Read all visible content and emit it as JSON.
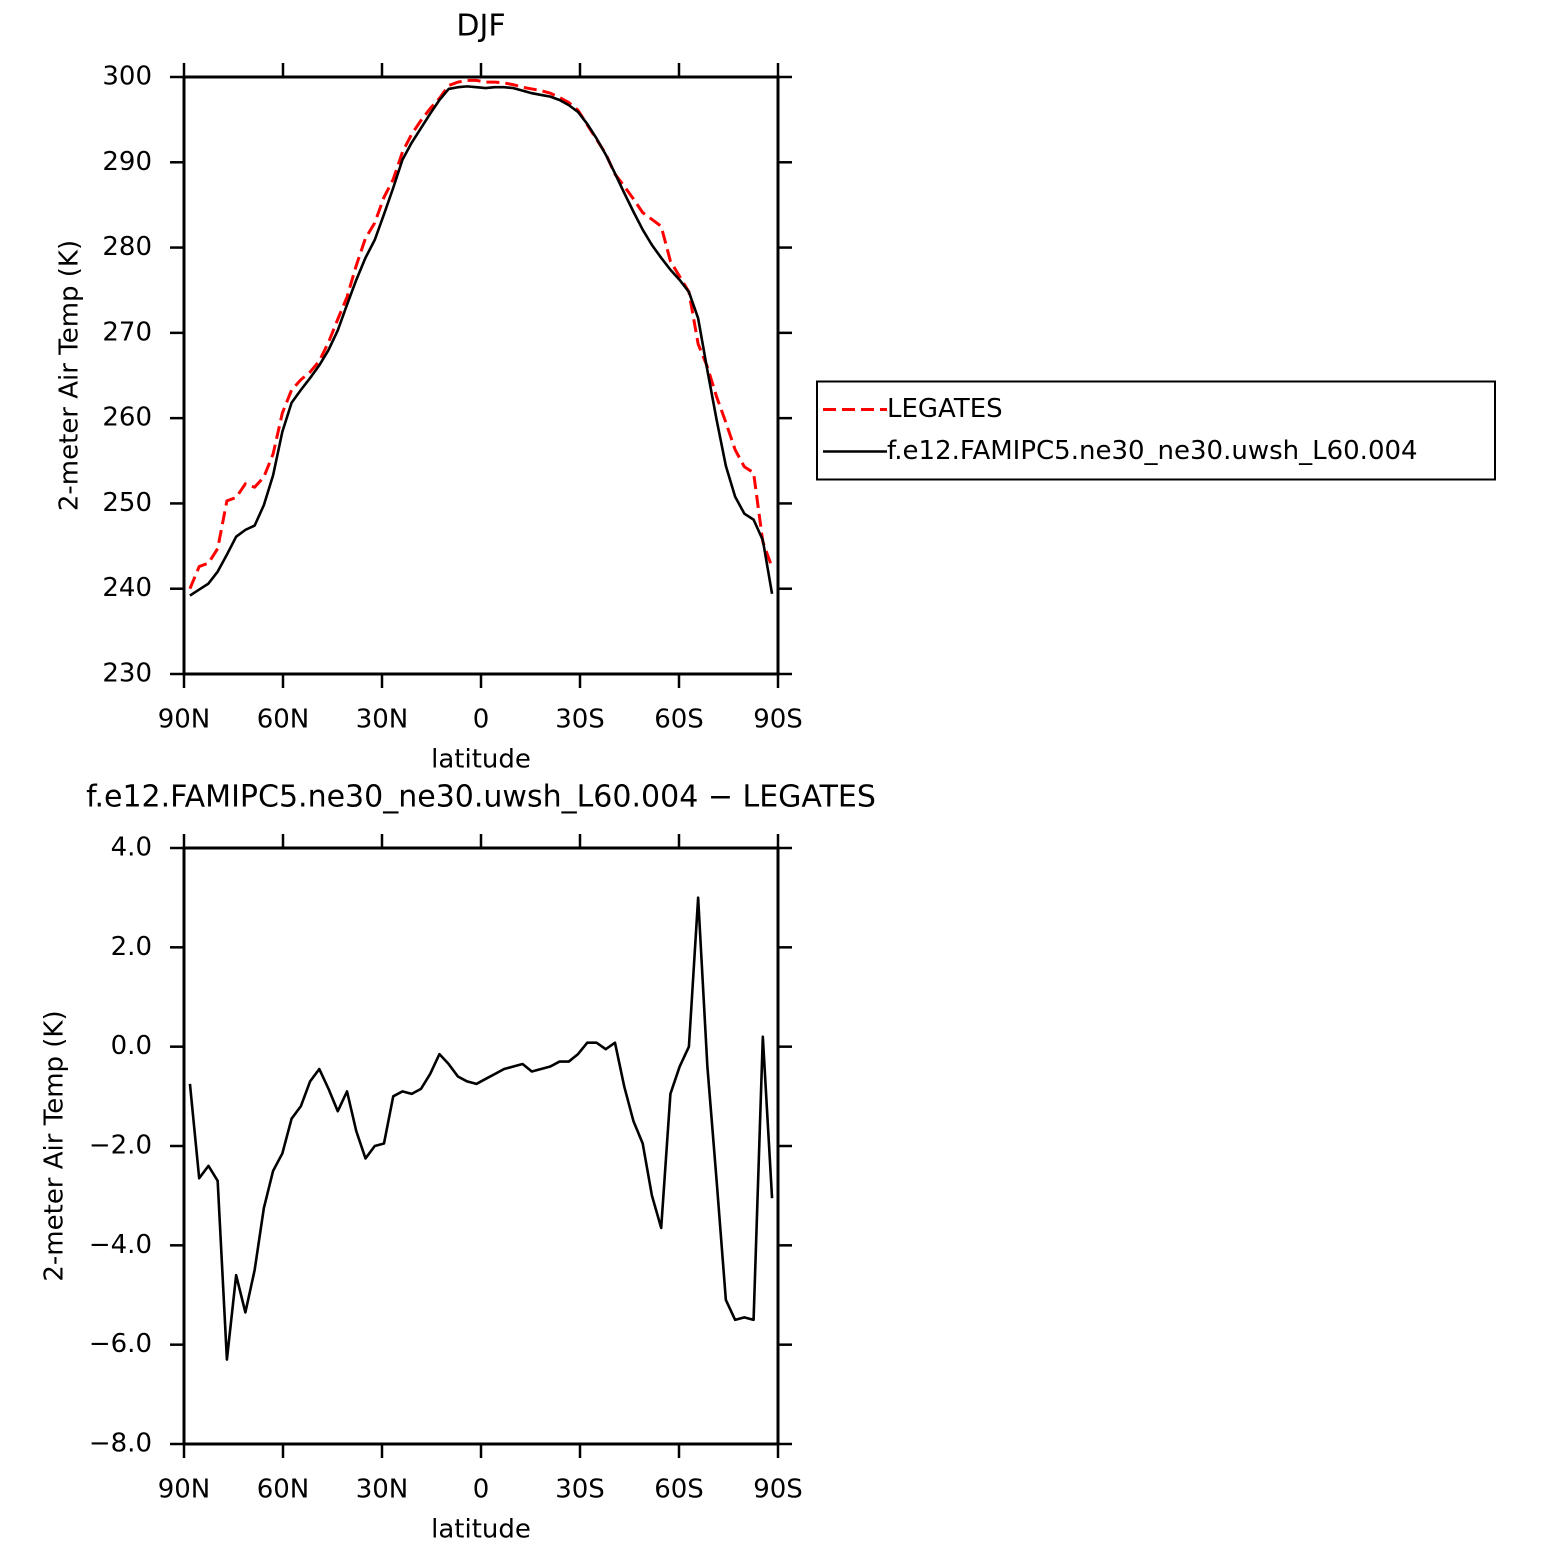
{
  "chart_data": [
    {
      "type": "line",
      "title": "DJF",
      "xlabel": "latitude",
      "ylabel": "2-meter Air Temp (K)",
      "x": [
        88.2,
        85.4,
        82.6,
        79.8,
        77.0,
        74.2,
        71.4,
        68.6,
        65.8,
        63.0,
        60.2,
        57.4,
        54.6,
        51.8,
        49.0,
        46.2,
        43.4,
        40.6,
        37.8,
        35.0,
        32.2,
        29.4,
        26.6,
        23.8,
        21.0,
        18.2,
        15.4,
        12.6,
        9.8,
        7.0,
        4.2,
        1.4,
        -1.4,
        -4.2,
        -7.0,
        -9.8,
        -12.6,
        -15.4,
        -18.2,
        -21.0,
        -23.8,
        -26.6,
        -29.4,
        -32.2,
        -35.0,
        -37.8,
        -40.6,
        -43.4,
        -46.2,
        -49.0,
        -51.8,
        -54.6,
        -57.4,
        -60.2,
        -63.0,
        -65.8,
        -68.6,
        -71.4,
        -74.2,
        -77.0,
        -79.8,
        -82.6,
        -85.4,
        -88.2
      ],
      "series": [
        {
          "name": "LEGATES",
          "color": "#ff0000",
          "dash": true,
          "values": [
            240.0,
            242.6,
            243.0,
            244.7,
            250.3,
            250.7,
            252.3,
            251.9,
            253.1,
            255.8,
            260.6,
            263.3,
            264.5,
            265.4,
            266.7,
            268.9,
            271.6,
            274.2,
            277.9,
            281.1,
            282.9,
            285.9,
            288.0,
            291.2,
            293.3,
            294.9,
            296.3,
            297.5,
            299.0,
            299.4,
            299.6,
            299.6,
            299.4,
            299.4,
            299.3,
            299.1,
            298.8,
            298.6,
            298.4,
            298.1,
            297.6,
            297.0,
            296.1,
            294.4,
            292.7,
            291.0,
            288.6,
            287.2,
            285.7,
            284.1,
            283.3,
            282.5,
            278.4,
            276.6,
            274.8,
            268.7,
            266.0,
            262.5,
            259.5,
            256.3,
            254.3,
            253.6,
            245.5,
            242.5
          ]
        },
        {
          "name": "f.e12.FAMIPC5.ne30_ne30.uwsh_L60.004",
          "color": "#000000",
          "dash": false,
          "values": [
            239.2,
            239.9,
            240.6,
            242.0,
            244.0,
            246.1,
            246.9,
            247.4,
            249.8,
            253.3,
            258.4,
            261.8,
            263.3,
            264.7,
            266.2,
            268.0,
            270.3,
            273.3,
            276.2,
            278.8,
            280.9,
            283.9,
            287.0,
            290.3,
            292.3,
            294.0,
            295.7,
            297.3,
            298.6,
            298.8,
            298.9,
            298.8,
            298.7,
            298.8,
            298.8,
            298.7,
            298.4,
            298.1,
            297.9,
            297.7,
            297.3,
            296.7,
            295.9,
            294.5,
            292.8,
            290.9,
            288.7,
            286.4,
            284.2,
            282.1,
            280.3,
            278.8,
            277.4,
            276.2,
            274.8,
            271.7,
            265.6,
            259.8,
            254.4,
            250.8,
            248.8,
            248.1,
            245.7,
            239.4
          ]
        }
      ],
      "xlim": [
        90,
        -90
      ],
      "xticks": [
        {
          "value": 90,
          "label": "90N"
        },
        {
          "value": 60,
          "label": "60N"
        },
        {
          "value": 30,
          "label": "30N"
        },
        0,
        {
          "value": -30,
          "label": "30S"
        },
        {
          "value": -60,
          "label": "60S"
        },
        {
          "value": -90,
          "label": "90S"
        }
      ],
      "ylim": [
        230,
        300
      ],
      "yticks": [
        230,
        240,
        250,
        260,
        270,
        280,
        290,
        300
      ],
      "legend": "right"
    },
    {
      "type": "line",
      "title": "f.e12.FAMIPC5.ne30_ne30.uwsh_L60.004 − LEGATES",
      "xlabel": "latitude",
      "ylabel": "2-meter Air Temp (K)",
      "x": [
        88.2,
        85.4,
        82.6,
        79.8,
        77.0,
        74.2,
        71.4,
        68.6,
        65.8,
        63.0,
        60.2,
        57.4,
        54.6,
        51.8,
        49.0,
        46.2,
        43.4,
        40.6,
        37.8,
        35.0,
        32.2,
        29.4,
        26.6,
        23.8,
        21.0,
        18.2,
        15.4,
        12.6,
        9.8,
        7.0,
        4.2,
        1.4,
        -1.4,
        -4.2,
        -7.0,
        -9.8,
        -12.6,
        -15.4,
        -18.2,
        -21.0,
        -23.8,
        -26.6,
        -29.4,
        -32.2,
        -35.0,
        -37.8,
        -40.6,
        -43.4,
        -46.2,
        -49.0,
        -51.8,
        -54.6,
        -57.4,
        -60.2,
        -63.0,
        -65.8,
        -68.6,
        -71.4,
        -74.2,
        -77.0,
        -79.8,
        -82.6,
        -85.4,
        -88.2
      ],
      "series": [
        {
          "color": "#000000",
          "dash": false,
          "values": [
            -0.75,
            -2.65,
            -2.4,
            -2.7,
            -6.3,
            -4.6,
            -5.35,
            -4.5,
            -3.25,
            -2.5,
            -2.15,
            -1.45,
            -1.2,
            -0.7,
            -0.45,
            -0.85,
            -1.3,
            -0.9,
            -1.7,
            -2.25,
            -2.0,
            -1.95,
            -1.0,
            -0.9,
            -0.95,
            -0.85,
            -0.55,
            -0.15,
            -0.35,
            -0.6,
            -0.7,
            -0.75,
            -0.65,
            -0.55,
            -0.45,
            -0.4,
            -0.35,
            -0.5,
            -0.45,
            -0.4,
            -0.3,
            -0.3,
            -0.15,
            0.08,
            0.08,
            -0.05,
            0.08,
            -0.8,
            -1.5,
            -1.95,
            -3.0,
            -3.65,
            -0.95,
            -0.4,
            0.0,
            3.0,
            -0.4,
            -2.7,
            -5.1,
            -5.5,
            -5.45,
            -5.5,
            0.2,
            -3.05
          ]
        }
      ],
      "xlim": [
        90,
        -90
      ],
      "xticks": [
        {
          "value": 90,
          "label": "90N"
        },
        {
          "value": 60,
          "label": "60N"
        },
        {
          "value": 30,
          "label": "30N"
        },
        0,
        {
          "value": -30,
          "label": "30S"
        },
        {
          "value": -60,
          "label": "60S"
        },
        {
          "value": -90,
          "label": "90S"
        }
      ],
      "ylim": [
        -8,
        4
      ],
      "yticks": [
        {
          "value": -8,
          "label": "−8.0"
        },
        {
          "value": -6,
          "label": "−6.0"
        },
        {
          "value": -4,
          "label": "−4.0"
        },
        {
          "value": -2,
          "label": "−2.0"
        },
        {
          "value": 0,
          "label": "0.0"
        },
        {
          "value": 2,
          "label": "2.0"
        },
        {
          "value": 4,
          "label": "4.0"
        }
      ]
    }
  ]
}
